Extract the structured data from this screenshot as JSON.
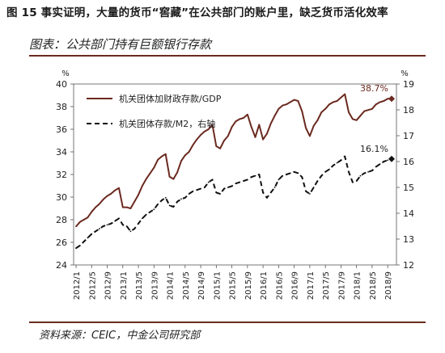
{
  "figure_title": "图 15 事实证明，大量的货币“窖藏”在公共部门的账户里，缺乏货币活化效率",
  "subtitle": "图表：公共部门持有巨额银行存款",
  "source": "资料来源：CEIC，中金公司研究部",
  "colors": {
    "primary": "#6b2a20",
    "secondary": "#111111",
    "accent_rule": "#6b2a20"
  },
  "chart_data": {
    "type": "line",
    "title": "",
    "x": [
      "2012/1",
      "2012/2",
      "2012/3",
      "2012/4",
      "2012/5",
      "2012/6",
      "2012/7",
      "2012/8",
      "2012/9",
      "2012/10",
      "2012/11",
      "2012/12",
      "2013/1",
      "2013/2",
      "2013/3",
      "2013/4",
      "2013/5",
      "2013/6",
      "2013/7",
      "2013/8",
      "2013/9",
      "2013/10",
      "2013/11",
      "2013/12",
      "2014/1",
      "2014/2",
      "2014/3",
      "2014/4",
      "2014/5",
      "2014/6",
      "2014/7",
      "2014/8",
      "2014/9",
      "2014/10",
      "2014/11",
      "2014/12",
      "2015/1",
      "2015/2",
      "2015/3",
      "2015/4",
      "2015/5",
      "2015/6",
      "2015/7",
      "2015/8",
      "2015/9",
      "2015/10",
      "2015/11",
      "2015/12",
      "2016/1",
      "2016/2",
      "2016/3",
      "2016/4",
      "2016/5",
      "2016/6",
      "2016/7",
      "2016/8",
      "2016/9",
      "2016/10",
      "2016/11",
      "2016/12",
      "2017/1",
      "2017/2",
      "2017/3",
      "2017/4",
      "2017/5",
      "2017/6",
      "2017/7",
      "2017/8",
      "2017/9",
      "2017/10",
      "2017/11",
      "2017/12",
      "2018/1",
      "2018/2",
      "2018/3",
      "2018/4",
      "2018/5",
      "2018/6",
      "2018/7",
      "2018/8",
      "2018/9",
      "2018/10"
    ],
    "x_tick_labels": [
      "2012/1",
      "2012/5",
      "2012/9",
      "2013/1",
      "2013/5",
      "2013/9",
      "2014/1",
      "2014/5",
      "2014/9",
      "2015/1",
      "2015/5",
      "2015/9",
      "2016/1",
      "2016/5",
      "2016/9",
      "2017/1",
      "2017/5",
      "2017/9",
      "2018/1",
      "2018/5",
      "2018/9"
    ],
    "y_left": {
      "label": "%",
      "lim": [
        24,
        40
      ],
      "ticks": [
        24,
        26,
        28,
        30,
        32,
        34,
        36,
        38,
        40
      ]
    },
    "y_right": {
      "label": "%",
      "lim": [
        12,
        19
      ],
      "ticks": [
        12,
        13,
        14,
        15,
        16,
        17,
        18,
        19
      ]
    },
    "series": [
      {
        "name": "机关团体加财政存款/GDP",
        "axis": "left",
        "style": "solid",
        "color": "#6b2a20",
        "values": [
          27.4,
          27.8,
          28.0,
          28.2,
          28.7,
          29.1,
          29.4,
          29.8,
          30.1,
          30.3,
          30.6,
          30.8,
          29.1,
          29.1,
          29.0,
          29.6,
          30.2,
          31.0,
          31.6,
          32.1,
          32.6,
          33.3,
          33.6,
          33.8,
          31.8,
          31.6,
          32.2,
          33.2,
          33.7,
          34.0,
          34.6,
          35.1,
          35.5,
          35.8,
          36.0,
          36.4,
          34.5,
          34.3,
          35.0,
          35.4,
          36.2,
          36.7,
          36.9,
          37.0,
          37.3,
          36.2,
          35.3,
          36.4,
          35.1,
          35.6,
          36.5,
          37.2,
          37.8,
          38.1,
          38.2,
          38.4,
          38.6,
          38.5,
          37.6,
          36.1,
          35.4,
          36.3,
          36.8,
          37.5,
          37.8,
          38.2,
          38.4,
          38.5,
          38.8,
          39.1,
          37.5,
          36.9,
          36.8,
          37.2,
          37.6,
          37.7,
          37.8,
          38.2,
          38.4,
          38.5,
          38.7,
          38.7
        ]
      },
      {
        "name": "机关团体存款/M2，右轴",
        "axis": "right",
        "style": "dashed",
        "color": "#111111",
        "values": [
          12.65,
          12.75,
          12.9,
          13.05,
          13.2,
          13.3,
          13.4,
          13.5,
          13.55,
          13.6,
          13.7,
          13.8,
          13.55,
          13.5,
          13.3,
          13.4,
          13.6,
          13.8,
          13.95,
          14.05,
          14.15,
          14.35,
          14.5,
          14.6,
          14.3,
          14.25,
          14.45,
          14.55,
          14.6,
          14.75,
          14.85,
          14.9,
          14.95,
          15.0,
          15.2,
          15.3,
          14.8,
          14.75,
          14.95,
          15.0,
          15.05,
          15.15,
          15.2,
          15.25,
          15.3,
          15.4,
          15.45,
          15.5,
          14.8,
          14.6,
          14.8,
          15.0,
          15.3,
          15.45,
          15.5,
          15.55,
          15.6,
          15.55,
          15.4,
          14.85,
          14.75,
          15.0,
          15.25,
          15.45,
          15.6,
          15.7,
          15.85,
          15.95,
          16.05,
          16.2,
          15.6,
          15.2,
          15.25,
          15.45,
          15.55,
          15.6,
          15.65,
          15.8,
          15.9,
          16.0,
          16.05,
          16.1
        ]
      }
    ],
    "end_labels": [
      {
        "series": 0,
        "text": "38.7%"
      },
      {
        "series": 1,
        "text": "16.1%"
      }
    ],
    "legend_position": "top-left",
    "grid": false
  }
}
